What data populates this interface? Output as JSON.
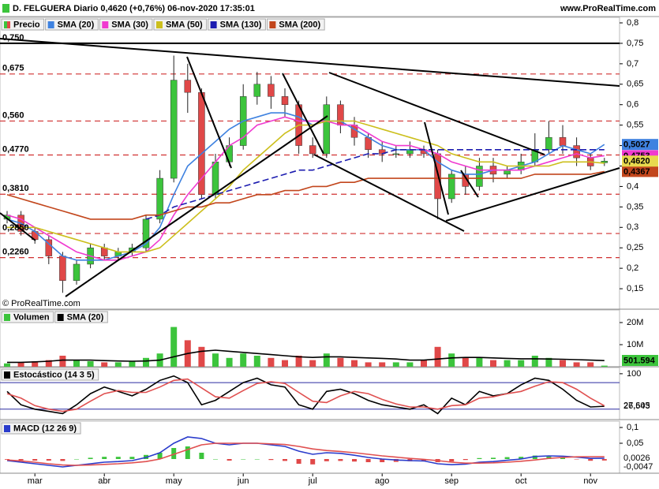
{
  "header": {
    "title": "D. FELGUERA Diario 0,4620 (+0,76%) 06-nov-2020 17:35:01",
    "site": "www.ProRealTime.com"
  },
  "chart_data": [
    {
      "type": "candlestick",
      "footer": "© ProRealTime.com",
      "categories": [
        null,
        null,
        "mar",
        null,
        null,
        null,
        null,
        "abr",
        null,
        null,
        null,
        null,
        "may",
        null,
        null,
        null,
        null,
        "jun",
        null,
        null,
        null,
        null,
        "jul",
        null,
        null,
        null,
        null,
        "ago",
        null,
        null,
        null,
        null,
        "sep",
        null,
        null,
        null,
        null,
        "oct",
        null,
        null,
        null,
        null,
        "nov",
        null
      ],
      "candles": {
        "name": "Precio",
        "up_color": "#3cc43c",
        "down_color": "#e04848",
        "label_color": "#e8da4e",
        "last_label": "0,4620",
        "open": [
          0.32,
          0.33,
          0.29,
          0.27,
          0.23,
          0.17,
          0.21,
          0.25,
          0.23,
          0.24,
          0.25,
          0.32,
          0.42,
          0.66,
          0.63,
          0.38,
          0.46,
          0.5,
          0.62,
          0.65,
          0.62,
          0.6,
          0.5,
          0.48,
          0.6,
          0.55,
          0.52,
          0.49,
          0.48,
          0.48,
          0.49,
          0.48,
          0.37,
          0.43,
          0.4,
          0.45,
          0.43,
          0.44,
          0.46,
          0.49,
          0.52,
          0.5,
          0.47,
          0.458
        ],
        "high": [
          0.34,
          0.34,
          0.3,
          0.28,
          0.24,
          0.22,
          0.26,
          0.26,
          0.25,
          0.26,
          0.33,
          0.44,
          0.72,
          0.7,
          0.64,
          0.48,
          0.52,
          0.65,
          0.68,
          0.67,
          0.64,
          0.61,
          0.52,
          0.62,
          0.61,
          0.57,
          0.53,
          0.51,
          0.5,
          0.51,
          0.5,
          0.49,
          0.44,
          0.45,
          0.47,
          0.47,
          0.45,
          0.48,
          0.53,
          0.56,
          0.55,
          0.52,
          0.48,
          0.47
        ],
        "low": [
          0.31,
          0.28,
          0.26,
          0.21,
          0.14,
          0.16,
          0.2,
          0.22,
          0.22,
          0.23,
          0.24,
          0.31,
          0.41,
          0.58,
          0.37,
          0.37,
          0.45,
          0.49,
          0.6,
          0.59,
          0.57,
          0.48,
          0.47,
          0.47,
          0.53,
          0.5,
          0.47,
          0.46,
          0.47,
          0.47,
          0.47,
          0.32,
          0.36,
          0.38,
          0.39,
          0.41,
          0.42,
          0.43,
          0.45,
          0.48,
          0.48,
          0.45,
          0.44,
          0.45
        ],
        "close": [
          0.33,
          0.29,
          0.27,
          0.23,
          0.17,
          0.21,
          0.25,
          0.23,
          0.24,
          0.25,
          0.32,
          0.42,
          0.66,
          0.63,
          0.38,
          0.46,
          0.5,
          0.62,
          0.65,
          0.62,
          0.6,
          0.5,
          0.48,
          0.6,
          0.55,
          0.52,
          0.49,
          0.48,
          0.48,
          0.49,
          0.48,
          0.37,
          0.43,
          0.4,
          0.45,
          0.43,
          0.44,
          0.46,
          0.49,
          0.52,
          0.5,
          0.47,
          0.45,
          0.462
        ]
      },
      "series": [
        {
          "name": "SMA (20)",
          "color": "#3f82e0",
          "last_label": "0,5027",
          "values": [
            0.32,
            0.31,
            0.29,
            0.26,
            0.23,
            0.22,
            0.22,
            0.22,
            0.23,
            0.24,
            0.26,
            0.3,
            0.38,
            0.45,
            0.48,
            0.51,
            0.54,
            0.56,
            0.57,
            0.58,
            0.58,
            0.57,
            0.55,
            0.56,
            0.56,
            0.54,
            0.52,
            0.5,
            0.49,
            0.49,
            0.49,
            0.46,
            0.44,
            0.43,
            0.43,
            0.44,
            0.44,
            0.45,
            0.46,
            0.48,
            0.5,
            0.49,
            0.48,
            0.5027
          ]
        },
        {
          "name": "SMA (30)",
          "color": "#f03ad0",
          "last_label": "0,4753",
          "values": [
            0.33,
            0.32,
            0.3,
            0.28,
            0.26,
            0.24,
            0.23,
            0.22,
            0.22,
            0.23,
            0.24,
            0.27,
            0.33,
            0.38,
            0.42,
            0.46,
            0.5,
            0.52,
            0.55,
            0.56,
            0.57,
            0.56,
            0.56,
            0.56,
            0.55,
            0.55,
            0.53,
            0.51,
            0.5,
            0.5,
            0.49,
            0.48,
            0.46,
            0.45,
            0.44,
            0.44,
            0.44,
            0.44,
            0.45,
            0.46,
            0.47,
            0.48,
            0.47,
            0.4753
          ]
        },
        {
          "name": "SMA (50)",
          "color": "#ccbf1c",
          "values": [
            0.3,
            0.3,
            0.3,
            0.29,
            0.28,
            0.27,
            0.26,
            0.25,
            0.24,
            0.24,
            0.24,
            0.25,
            0.28,
            0.31,
            0.34,
            0.37,
            0.4,
            0.44,
            0.47,
            0.5,
            0.53,
            0.55,
            0.55,
            0.56,
            0.56,
            0.56,
            0.55,
            0.54,
            0.53,
            0.52,
            0.51,
            0.5,
            0.48,
            0.47,
            0.46,
            0.46,
            0.45,
            0.45,
            0.45,
            0.45,
            0.46,
            0.46,
            0.46,
            0.457
          ]
        },
        {
          "name": "SMA (130)",
          "color": "#1c1cb0",
          "dashed": true,
          "values": [
            null,
            null,
            null,
            null,
            null,
            null,
            null,
            null,
            null,
            null,
            0.32,
            0.33,
            0.35,
            0.36,
            0.37,
            0.38,
            0.39,
            0.4,
            0.41,
            0.42,
            0.43,
            0.44,
            0.44,
            0.45,
            0.46,
            0.47,
            0.48,
            0.48,
            0.49,
            0.49,
            0.49,
            0.49,
            0.49,
            0.49,
            0.49,
            0.49,
            0.49,
            0.49,
            0.49,
            0.49,
            0.49,
            0.49,
            0.49,
            0.49
          ]
        },
        {
          "name": "SMA (200)",
          "color": "#c2461c",
          "last_label": "0,4367",
          "values": [
            0.38,
            0.37,
            0.36,
            0.35,
            0.34,
            0.33,
            0.32,
            0.32,
            0.32,
            0.32,
            0.33,
            0.33,
            0.34,
            0.35,
            0.35,
            0.36,
            0.36,
            0.37,
            0.38,
            0.38,
            0.39,
            0.39,
            0.4,
            0.4,
            0.41,
            0.41,
            0.42,
            0.42,
            0.42,
            0.42,
            0.42,
            0.42,
            0.42,
            0.42,
            0.42,
            0.42,
            0.42,
            0.42,
            0.43,
            0.43,
            0.43,
            0.43,
            0.43,
            0.4367
          ]
        }
      ],
      "levels": [
        {
          "value": 0.75,
          "label": "0,750",
          "color": "#000000",
          "style": "solid"
        },
        {
          "value": 0.675,
          "label": "0,675",
          "color": "#d03030",
          "style": "dashed"
        },
        {
          "value": 0.56,
          "label": "0,560",
          "color": "#d03030",
          "style": "dashed"
        },
        {
          "value": 0.477,
          "label": "0,4770",
          "color": "#d03030",
          "style": "dashed"
        },
        {
          "value": 0.381,
          "label": "0,3810",
          "color": "#d03030",
          "style": "dashed"
        },
        {
          "value": 0.285,
          "label": "0,2850",
          "color": "#d03030",
          "style": "dashed"
        },
        {
          "value": 0.226,
          "label": "0,2260",
          "color": "#d03030",
          "style": "dashed"
        }
      ],
      "ylim": [
        0.1,
        0.8135
      ],
      "yticks": [
        {
          "value": 0.8,
          "label": "0,8"
        },
        {
          "value": 0.75,
          "label": "0,75"
        },
        {
          "value": 0.7,
          "label": "0,7"
        },
        {
          "value": 0.65,
          "label": "0,65"
        },
        {
          "value": 0.6,
          "label": "0,6"
        },
        {
          "value": 0.55,
          "label": "0,55"
        },
        {
          "value": 0.5,
          "label": "0,5"
        },
        {
          "value": 0.45,
          "label": "0,45"
        },
        {
          "value": 0.4,
          "label": "0,4"
        },
        {
          "value": 0.35,
          "label": "0,35"
        },
        {
          "value": 0.3,
          "label": "0,3"
        },
        {
          "value": 0.25,
          "label": "0,25"
        },
        {
          "value": 0.2,
          "label": "0,2"
        },
        {
          "value": 0.15,
          "label": "0,15"
        }
      ]
    },
    {
      "type": "bar",
      "title": "Volumen",
      "up_color": "#3cc43c",
      "down_color": "#e04848",
      "last_label": "501.594",
      "values": [
        1500000,
        2000000,
        2500000,
        3000000,
        5000000,
        3000000,
        2500000,
        2000000,
        2000000,
        2500000,
        4000000,
        6000000,
        18000000,
        12000000,
        9000000,
        6000000,
        4000000,
        6000000,
        5000000,
        4000000,
        3000000,
        5000000,
        3000000,
        6000000,
        4000000,
        3000000,
        2000000,
        2000000,
        2000000,
        2000000,
        3000000,
        9000000,
        6000000,
        4000000,
        4000000,
        3000000,
        3000000,
        3000000,
        5000000,
        4000000,
        3000000,
        2000000,
        2000000,
        501594
      ],
      "series": [
        {
          "name": "SMA (20)",
          "color": "#000000",
          "values": [
            2000000,
            2000000,
            2200000,
            2500000,
            3000000,
            3000000,
            3000000,
            2800000,
            2600000,
            2500000,
            2600000,
            3000000,
            4500000,
            6000000,
            7000000,
            7500000,
            7000000,
            6500000,
            6000000,
            5500000,
            5000000,
            4500000,
            4200000,
            4500000,
            4500000,
            4200000,
            4000000,
            3800000,
            3500000,
            3000000,
            3000000,
            3500000,
            4000000,
            4200000,
            4200000,
            4000000,
            3800000,
            3600000,
            3600000,
            3500000,
            3400000,
            3200000,
            3000000,
            2800000
          ]
        }
      ],
      "ylim": [
        0,
        25700000
      ],
      "yticks": [
        {
          "value": 20000000,
          "label": "20M"
        },
        {
          "value": 10000000,
          "label": "10M"
        }
      ]
    },
    {
      "type": "line",
      "title": "Estocástico (14 3 5)",
      "color": "#000000",
      "series": [
        {
          "color": "#000000",
          "last_label": "26,543",
          "values": [
            60,
            30,
            20,
            15,
            10,
            30,
            55,
            70,
            60,
            50,
            65,
            85,
            95,
            80,
            30,
            40,
            60,
            80,
            90,
            75,
            70,
            30,
            20,
            60,
            65,
            55,
            40,
            30,
            25,
            20,
            30,
            10,
            45,
            30,
            60,
            50,
            55,
            75,
            90,
            85,
            65,
            40,
            25,
            26.543
          ]
        },
        {
          "color": "#e05050",
          "last_label": "27,605",
          "values": [
            55,
            45,
            28,
            20,
            15,
            20,
            38,
            55,
            62,
            58,
            58,
            70,
            85,
            88,
            68,
            48,
            45,
            62,
            78,
            82,
            78,
            58,
            38,
            35,
            50,
            60,
            55,
            42,
            32,
            25,
            25,
            20,
            28,
            30,
            45,
            48,
            55,
            60,
            72,
            82,
            80,
            65,
            45,
            27.605
          ]
        }
      ],
      "levels": [
        80,
        20
      ],
      "level_color": "#2a2aa0",
      "ylim": [
        -3.5,
        114
      ],
      "yticks": [
        100
      ]
    },
    {
      "type": "line",
      "title": "MACD (12 26 9)",
      "color": "#2a3ccc",
      "series": [
        {
          "color": "#2a3ccc",
          "last_label": "0,0026",
          "values": [
            -0.005,
            -0.01,
            -0.015,
            -0.02,
            -0.025,
            -0.02,
            -0.015,
            -0.01,
            -0.008,
            -0.005,
            0.005,
            0.02,
            0.05,
            0.07,
            0.065,
            0.05,
            0.045,
            0.05,
            0.05,
            0.045,
            0.04,
            0.025,
            0.015,
            0.02,
            0.018,
            0.012,
            0.005,
            0,
            -0.003,
            -0.005,
            -0.006,
            -0.015,
            -0.018,
            -0.016,
            -0.01,
            -0.008,
            -0.004,
            0,
            0.008,
            0.01,
            0.009,
            0.006,
            0.002,
            0.0026
          ]
        },
        {
          "color": "#e05050",
          "values": [
            -0.003,
            -0.006,
            -0.01,
            -0.015,
            -0.019,
            -0.02,
            -0.019,
            -0.017,
            -0.015,
            -0.012,
            -0.008,
            0,
            0.015,
            0.03,
            0.045,
            0.05,
            0.05,
            0.05,
            0.05,
            0.048,
            0.046,
            0.04,
            0.032,
            0.027,
            0.024,
            0.02,
            0.015,
            0.01,
            0.006,
            0.002,
            -0.001,
            -0.005,
            -0.01,
            -0.013,
            -0.013,
            -0.012,
            -0.01,
            -0.007,
            -0.003,
            0.002,
            0.005,
            0.007,
            0.0075,
            0.0073
          ]
        }
      ],
      "histogram": {
        "up_color": "#3cc43c",
        "down_color": "#e04848",
        "last_label": "-0,0047",
        "values": [
          -0.002,
          -0.004,
          -0.005,
          -0.005,
          -0.006,
          0,
          0.004,
          0.007,
          0.007,
          0.007,
          0.013,
          0.02,
          0.035,
          0.04,
          0.02,
          0,
          -0.005,
          0,
          0,
          -0.003,
          -0.006,
          -0.015,
          -0.017,
          -0.007,
          -0.006,
          -0.008,
          -0.01,
          -0.01,
          -0.009,
          -0.007,
          -0.005,
          -0.01,
          -0.008,
          -0.003,
          0.003,
          0.004,
          0.006,
          0.007,
          0.011,
          0.008,
          0.004,
          -0.001,
          -0.0055,
          -0.0047
        ]
      },
      "ylim": [
        -0.045,
        0.12
      ],
      "yticks": [
        {
          "value": 0.1,
          "label": "0,1"
        },
        {
          "value": 0.05,
          "label": "0,05"
        }
      ]
    }
  ]
}
